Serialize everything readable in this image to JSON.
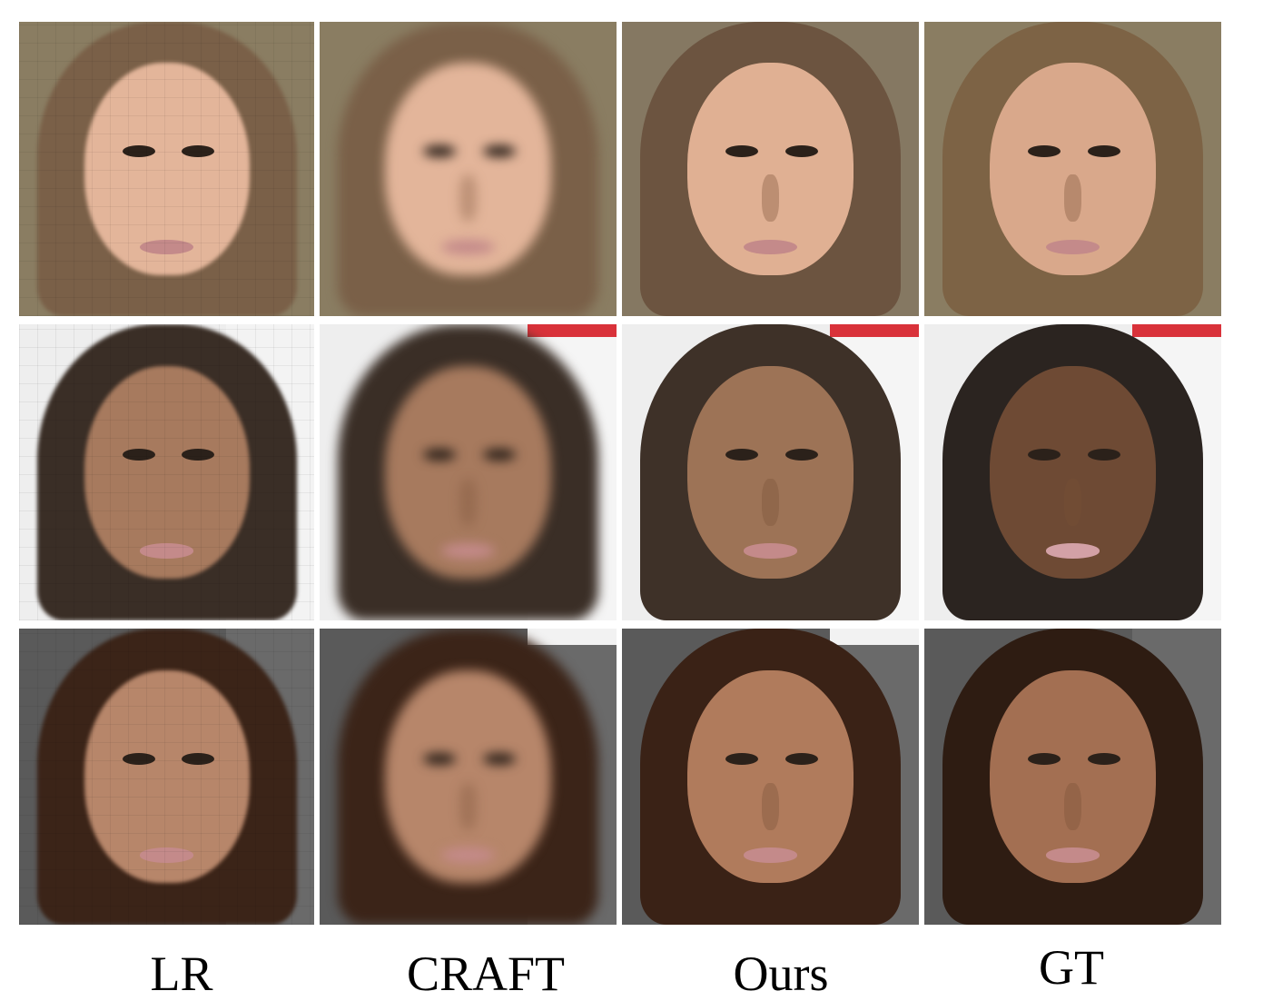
{
  "columns": [
    {
      "key": "lr",
      "label": "LR"
    },
    {
      "key": "craft",
      "label": "CRAFT"
    },
    {
      "key": "ours",
      "label": "Ours"
    },
    {
      "key": "gt",
      "label": "GT"
    }
  ],
  "rows": [
    {
      "subject": "face-1",
      "skin": "#e3b59a",
      "hair": "#7a6048",
      "bg": "#8a7d62"
    },
    {
      "subject": "face-2",
      "skin": "#a77a5e",
      "hair": "#3a2e26",
      "bg": "#eeeeee"
    },
    {
      "subject": "face-3",
      "skin": "#b7866a",
      "hair": "#3b2418",
      "bg": "#5a5a5a"
    }
  ]
}
